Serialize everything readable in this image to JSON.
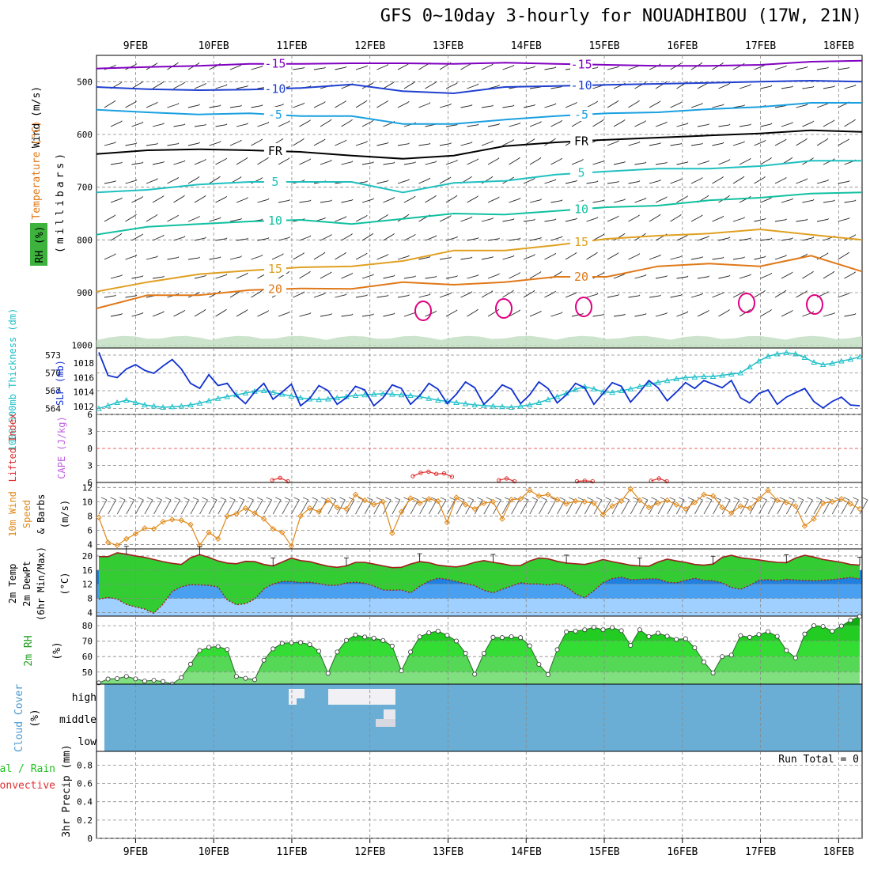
{
  "title": "GFS 0~10day 3-hourly for NOUADHIBOU (17W, 21N)",
  "days": [
    "9FEB",
    "10FEB",
    "11FEB",
    "12FEB",
    "13FEB",
    "14FEB",
    "15FEB",
    "16FEB",
    "17FEB",
    "18FEB"
  ],
  "colors": {
    "frame": "#000000",
    "grid": "#888888",
    "temp_purple": "#8000c0",
    "temp_blue": "#2040d0",
    "temp_lblue": "#1aa0e0",
    "temp_black": "#000000",
    "temp_teal": "#20c0c0",
    "temp_green": "#10c0a0",
    "temp_gold": "#e0a020",
    "temp_orange": "#e07818",
    "temp_magenta": "#e00080",
    "slp": "#1030d0",
    "thick": "#20c0c8",
    "li": "#e03030",
    "cape": "#c060e0",
    "wind": "#e08818",
    "temp2m": "#a02020",
    "temp_fill": "#33cc33",
    "dew_fill": "#2080e0",
    "rh_fill": "#33cc33",
    "cloud": "#6aaed6",
    "cloud_clear": "#f0f0f5",
    "precip_total": "#20c020",
    "precip_conv": "#e03030"
  },
  "labels": {
    "wind_ms": "Wind (m/s)",
    "temperature": "Temperature (°C)",
    "rh_pct": "RH (%)",
    "millibars": "(millibars)",
    "slp": "SLP (mb)",
    "thickness": "1000-500mb Thickness (dm)",
    "lifted_index": "Lifted Index",
    "cape": "CAPE (J/kg)",
    "wind10m": "10m Wind",
    "speed": "Speed",
    "barbs": "& Barbs",
    "ms": "(m/s)",
    "temp2m": "2m Temp",
    "dewpt2m": "2m DewPt",
    "minmax": "(6hr Min/Max)",
    "degc": "(°C)",
    "rh2m": "2m RH",
    "pct": "(%)",
    "cloud_cover": "Cloud Cover",
    "high": "high",
    "middle": "middle",
    "low": "low",
    "total_rain": "Total / Rain",
    "convective": "Convective",
    "precip3hr": "3hr Precip (mm)",
    "run_total": "Run Total = 0"
  },
  "chart_data": [
    {
      "type": "contour",
      "title": "Vertical cross-section",
      "ylabel": "(millibars)",
      "y_ticks": [
        500,
        600,
        700,
        800,
        900,
        1000
      ],
      "ylim": [
        450,
        1005
      ],
      "temperature_contours": [
        {
          "label": "-15",
          "color": "purple",
          "p": [
            475,
            472,
            470,
            466,
            466,
            465,
            465,
            466,
            464,
            466,
            468,
            470,
            470,
            468,
            462,
            460
          ]
        },
        {
          "label": "-10",
          "color": "blue",
          "p": [
            510,
            514,
            516,
            515,
            512,
            505,
            518,
            522,
            510,
            508,
            506,
            504,
            502,
            500,
            498,
            500
          ]
        },
        {
          "label": "-5",
          "color": "light-blue",
          "p": [
            553,
            558,
            562,
            560,
            565,
            565,
            580,
            580,
            572,
            565,
            560,
            558,
            552,
            548,
            540,
            540
          ]
        },
        {
          "label": "FR",
          "color": "black",
          "p": [
            637,
            630,
            628,
            630,
            633,
            640,
            646,
            640,
            622,
            615,
            610,
            606,
            602,
            598,
            592,
            595
          ]
        },
        {
          "label": "5",
          "color": "teal",
          "p": [
            710,
            705,
            695,
            690,
            690,
            690,
            710,
            692,
            688,
            676,
            670,
            665,
            665,
            660,
            650,
            650
          ]
        },
        {
          "label": "10",
          "color": "green",
          "p": [
            790,
            775,
            770,
            765,
            762,
            770,
            760,
            750,
            752,
            745,
            738,
            735,
            725,
            720,
            712,
            710
          ]
        },
        {
          "label": "15",
          "color": "gold",
          "p": [
            898,
            880,
            865,
            858,
            852,
            850,
            840,
            820,
            820,
            810,
            798,
            792,
            788,
            780,
            790,
            800
          ]
        },
        {
          "label": "20",
          "color": "orange",
          "p": [
            930,
            905,
            905,
            895,
            892,
            893,
            880,
            885,
            880,
            870,
            870,
            850,
            845,
            850,
            830,
            860
          ]
        }
      ],
      "x_days_start": 8.5,
      "x_days_end": 18.3
    },
    {
      "type": "line",
      "title": "",
      "y_ticks_left": [
        564,
        567,
        570,
        573
      ],
      "y_ticks_inner": [
        1012,
        1014,
        1016,
        1018
      ],
      "series": [
        {
          "name": "SLP (mb)",
          "axis": "slp",
          "ylim": [
            1010.9,
            1020.1
          ],
          "values": [
            1019.5,
            1016.3,
            1016.0,
            1017.2,
            1017.8,
            1017.0,
            1016.6,
            1017.6,
            1018.5,
            1017.2,
            1015.2,
            1014.5,
            1016.4,
            1014.9,
            1015.2,
            1013.5,
            1012.4,
            1014.0,
            1015.2,
            1013.0,
            1014.0,
            1015.1,
            1012.1,
            1013.1,
            1014.9,
            1014.2,
            1012.3,
            1013.2,
            1014.8,
            1014.3,
            1012.1,
            1013.2,
            1015.0,
            1014.5,
            1012.3,
            1013.5,
            1015.2,
            1014.4,
            1012.4,
            1013.7,
            1015.4,
            1014.6,
            1012.3,
            1013.5,
            1015.0,
            1014.4,
            1012.4,
            1013.6,
            1015.4,
            1014.5,
            1012.5,
            1013.6,
            1015.2,
            1014.6,
            1012.3,
            1013.8,
            1015.3,
            1014.8,
            1012.6,
            1014.0,
            1015.6,
            1014.6,
            1012.8,
            1014.0,
            1015.3,
            1014.5,
            1015.6,
            1015.1,
            1014.6,
            1015.6,
            1013.2,
            1012.5,
            1013.8,
            1014.3,
            1012.3,
            1013.3,
            1013.9,
            1014.5,
            1012.7,
            1011.8,
            1012.7,
            1013.3,
            1012.2,
            1012.1
          ]
        },
        {
          "name": "1000-500mb Thickness (dm)",
          "axis": "thick",
          "ylim": [
            563.0,
            574.2
          ],
          "values": [
            564.0,
            564.5,
            565.0,
            565.4,
            565.0,
            564.6,
            564.4,
            564.2,
            564.3,
            564.4,
            564.6,
            564.9,
            565.3,
            565.7,
            566.0,
            566.3,
            566.6,
            566.9,
            567.0,
            566.7,
            566.4,
            566.1,
            565.8,
            565.6,
            565.5,
            565.6,
            565.8,
            566.0,
            566.2,
            566.3,
            566.4,
            566.5,
            566.4,
            566.3,
            566.2,
            566.0,
            565.7,
            565.4,
            565.2,
            565.0,
            564.8,
            564.6,
            564.5,
            564.4,
            564.3,
            564.2,
            564.4,
            564.6,
            565.0,
            565.5,
            566.0,
            566.6,
            567.2,
            567.7,
            567.3,
            566.8,
            566.7,
            567.0,
            567.3,
            567.7,
            568.1,
            568.4,
            568.7,
            569.0,
            569.2,
            569.3,
            569.4,
            569.4,
            569.6,
            569.8,
            570.0,
            571.0,
            572.0,
            572.8,
            573.2,
            573.4,
            573.2,
            572.6,
            571.8,
            571.4,
            571.6,
            572.0,
            572.3,
            572.7
          ]
        }
      ]
    },
    {
      "type": "line",
      "title": "",
      "y_ticks": [
        -6,
        -3,
        0,
        3,
        6
      ],
      "ylim": [
        6,
        -6
      ],
      "series": [
        {
          "name": "Lifted Index",
          "x_days": [
            10.75,
            10.85,
            10.95
          ],
          "values": [
            5.6,
            5.2,
            5.8
          ]
        },
        {
          "name": "Lifted Index",
          "x_days": [
            12.55,
            12.65,
            12.75,
            12.85,
            12.95,
            13.05
          ],
          "values": [
            4.9,
            4.3,
            4.1,
            4.5,
            4.4,
            5.0
          ]
        },
        {
          "name": "Lifted Index",
          "x_days": [
            13.65,
            13.75,
            13.85
          ],
          "values": [
            5.6,
            5.3,
            5.8
          ]
        },
        {
          "name": "Lifted Index",
          "x_days": [
            14.65,
            14.75,
            14.85
          ],
          "values": [
            5.8,
            5.7,
            5.8
          ]
        },
        {
          "name": "Lifted Index",
          "x_days": [
            15.6,
            15.7,
            15.8
          ],
          "values": [
            5.7,
            5.3,
            5.8
          ]
        }
      ]
    },
    {
      "type": "line",
      "title": "",
      "y_ticks": [
        4,
        6,
        8,
        10,
        12
      ],
      "ylim": [
        3.4,
        12.7
      ],
      "series": [
        {
          "name": "10m Wind Speed (m/s)",
          "values": [
            7.8,
            4.3,
            3.9,
            4.8,
            5.5,
            6.3,
            6.2,
            7.2,
            7.5,
            7.4,
            6.8,
            3.9,
            5.7,
            4.8,
            8.0,
            8.3,
            9.1,
            8.4,
            7.6,
            6.2,
            5.7,
            3.8,
            8.0,
            9.1,
            8.6,
            10.2,
            9.2,
            9.0,
            11.0,
            10.2,
            9.6,
            10.0,
            5.6,
            8.6,
            10.5,
            9.8,
            10.4,
            10.1,
            7.1,
            10.6,
            9.6,
            9.0,
            9.8,
            10.0,
            7.6,
            10.3,
            10.4,
            11.6,
            10.8,
            11.0,
            10.3,
            9.7,
            10.1,
            10.0,
            9.8,
            8.2,
            9.4,
            10.1,
            11.8,
            10.2,
            9.2,
            9.8,
            10.2,
            9.6,
            9.0,
            9.9,
            11.0,
            10.8,
            9.2,
            8.4,
            9.4,
            9.1,
            10.4,
            11.6,
            10.2,
            9.9,
            9.4,
            6.6,
            7.6,
            9.8,
            10.0,
            10.4,
            9.7,
            9.0
          ]
        }
      ]
    },
    {
      "type": "area",
      "title": "",
      "y_ticks": [
        4,
        8,
        12,
        16,
        20
      ],
      "ylim": [
        3.0,
        22.0
      ],
      "series": [
        {
          "name": "2m Temp (°C)",
          "values": [
            19.8,
            19.8,
            20.9,
            20.5,
            20.0,
            19.6,
            19.0,
            18.4,
            17.9,
            17.6,
            19.5,
            20.4,
            19.6,
            18.6,
            18.0,
            17.8,
            18.5,
            18.4,
            17.6,
            17.2,
            18.3,
            19.4,
            18.7,
            18.4,
            17.7,
            17.1,
            16.8,
            17.2,
            18.2,
            18.2,
            17.7,
            17.2,
            16.7,
            16.8,
            17.7,
            18.4,
            18.1,
            17.4,
            17.1,
            16.9,
            17.4,
            18.2,
            18.7,
            18.2,
            17.8,
            17.3,
            17.3,
            18.6,
            19.4,
            19.2,
            18.5,
            18.0,
            17.8,
            17.6,
            18.2,
            19.0,
            18.4,
            17.9,
            17.4,
            17.2,
            17.1,
            18.3,
            19.1,
            18.6,
            18.2,
            17.6,
            17.4,
            17.7,
            19.6,
            20.2,
            19.5,
            19.2,
            18.9,
            18.5,
            18.2,
            18.1,
            19.4,
            20.2,
            19.7,
            19.0,
            18.6,
            18.2,
            17.6,
            17.4
          ]
        },
        {
          "name": "2m DewPt (°C)",
          "values": [
            7.8,
            8.3,
            7.8,
            6.3,
            5.6,
            5.0,
            3.8,
            6.4,
            10.0,
            11.3,
            11.9,
            11.8,
            11.7,
            11.2,
            7.6,
            6.2,
            6.5,
            7.8,
            10.7,
            12.1,
            12.8,
            12.8,
            12.5,
            12.6,
            12.2,
            11.7,
            11.7,
            12.4,
            12.6,
            12.3,
            11.5,
            10.4,
            10.3,
            10.4,
            9.6,
            11.4,
            12.9,
            13.7,
            13.4,
            12.8,
            12.2,
            11.6,
            10.3,
            9.6,
            10.6,
            11.5,
            12.4,
            12.1,
            12.1,
            11.8,
            12.2,
            11.3,
            9.3,
            8.2,
            10.2,
            12.5,
            13.6,
            14.0,
            13.3,
            13.4,
            13.5,
            13.5,
            12.6,
            12.4,
            13.1,
            13.7,
            13.1,
            13.0,
            12.4,
            11.1,
            10.6,
            11.7,
            13.1,
            13.3,
            13.0,
            13.4,
            13.2,
            13.1,
            13.0,
            13.1,
            13.3,
            13.6,
            13.9,
            13.5
          ]
        }
      ]
    },
    {
      "type": "area",
      "title": "",
      "y_ticks": [
        50,
        60,
        70,
        80
      ],
      "ylim": [
        42.2,
        86.2
      ],
      "series": [
        {
          "name": "2m RH (%)",
          "values": [
            43.0,
            45.5,
            45.8,
            47.2,
            45.6,
            44.2,
            44.7,
            43.9,
            42.3,
            46.4,
            55.1,
            64.0,
            66.0,
            66.5,
            64.6,
            47.2,
            46.0,
            45.1,
            57.7,
            65.0,
            68.6,
            69.0,
            69.1,
            67.8,
            63.5,
            49.2,
            63.0,
            70.5,
            74.0,
            72.7,
            72.0,
            70.4,
            66.8,
            50.8,
            63.0,
            72.8,
            75.4,
            76.5,
            73.8,
            70.1,
            62.2,
            48.6,
            62.1,
            72.5,
            72.3,
            72.9,
            72.3,
            67.0,
            55.0,
            48.4,
            64.5,
            76.0,
            76.5,
            77.4,
            79.0,
            77.4,
            78.8,
            76.8,
            67.3,
            77.4,
            73.0,
            75.2,
            73.2,
            71.2,
            71.6,
            65.7,
            56.5,
            49.5,
            60.0,
            61.0,
            73.6,
            72.5,
            74.3,
            76.1,
            73.1,
            64.0,
            59.2,
            74.6,
            80.0,
            79.5,
            76.5,
            79.8,
            83.5,
            86.0
          ]
        }
      ]
    },
    {
      "type": "heatmap",
      "title": "",
      "categories": [
        "high",
        "middle",
        "low"
      ],
      "note": "Mostly overcast; clear gaps in high/middle cloud around 11FEB-12FEB"
    },
    {
      "type": "bar",
      "title": "",
      "y_ticks": [
        0,
        0.2,
        0.4,
        0.6,
        0.8
      ],
      "ylim": [
        0,
        0.95
      ],
      "series": [
        {
          "name": "3hr Precip (mm)",
          "values": []
        }
      ]
    }
  ]
}
